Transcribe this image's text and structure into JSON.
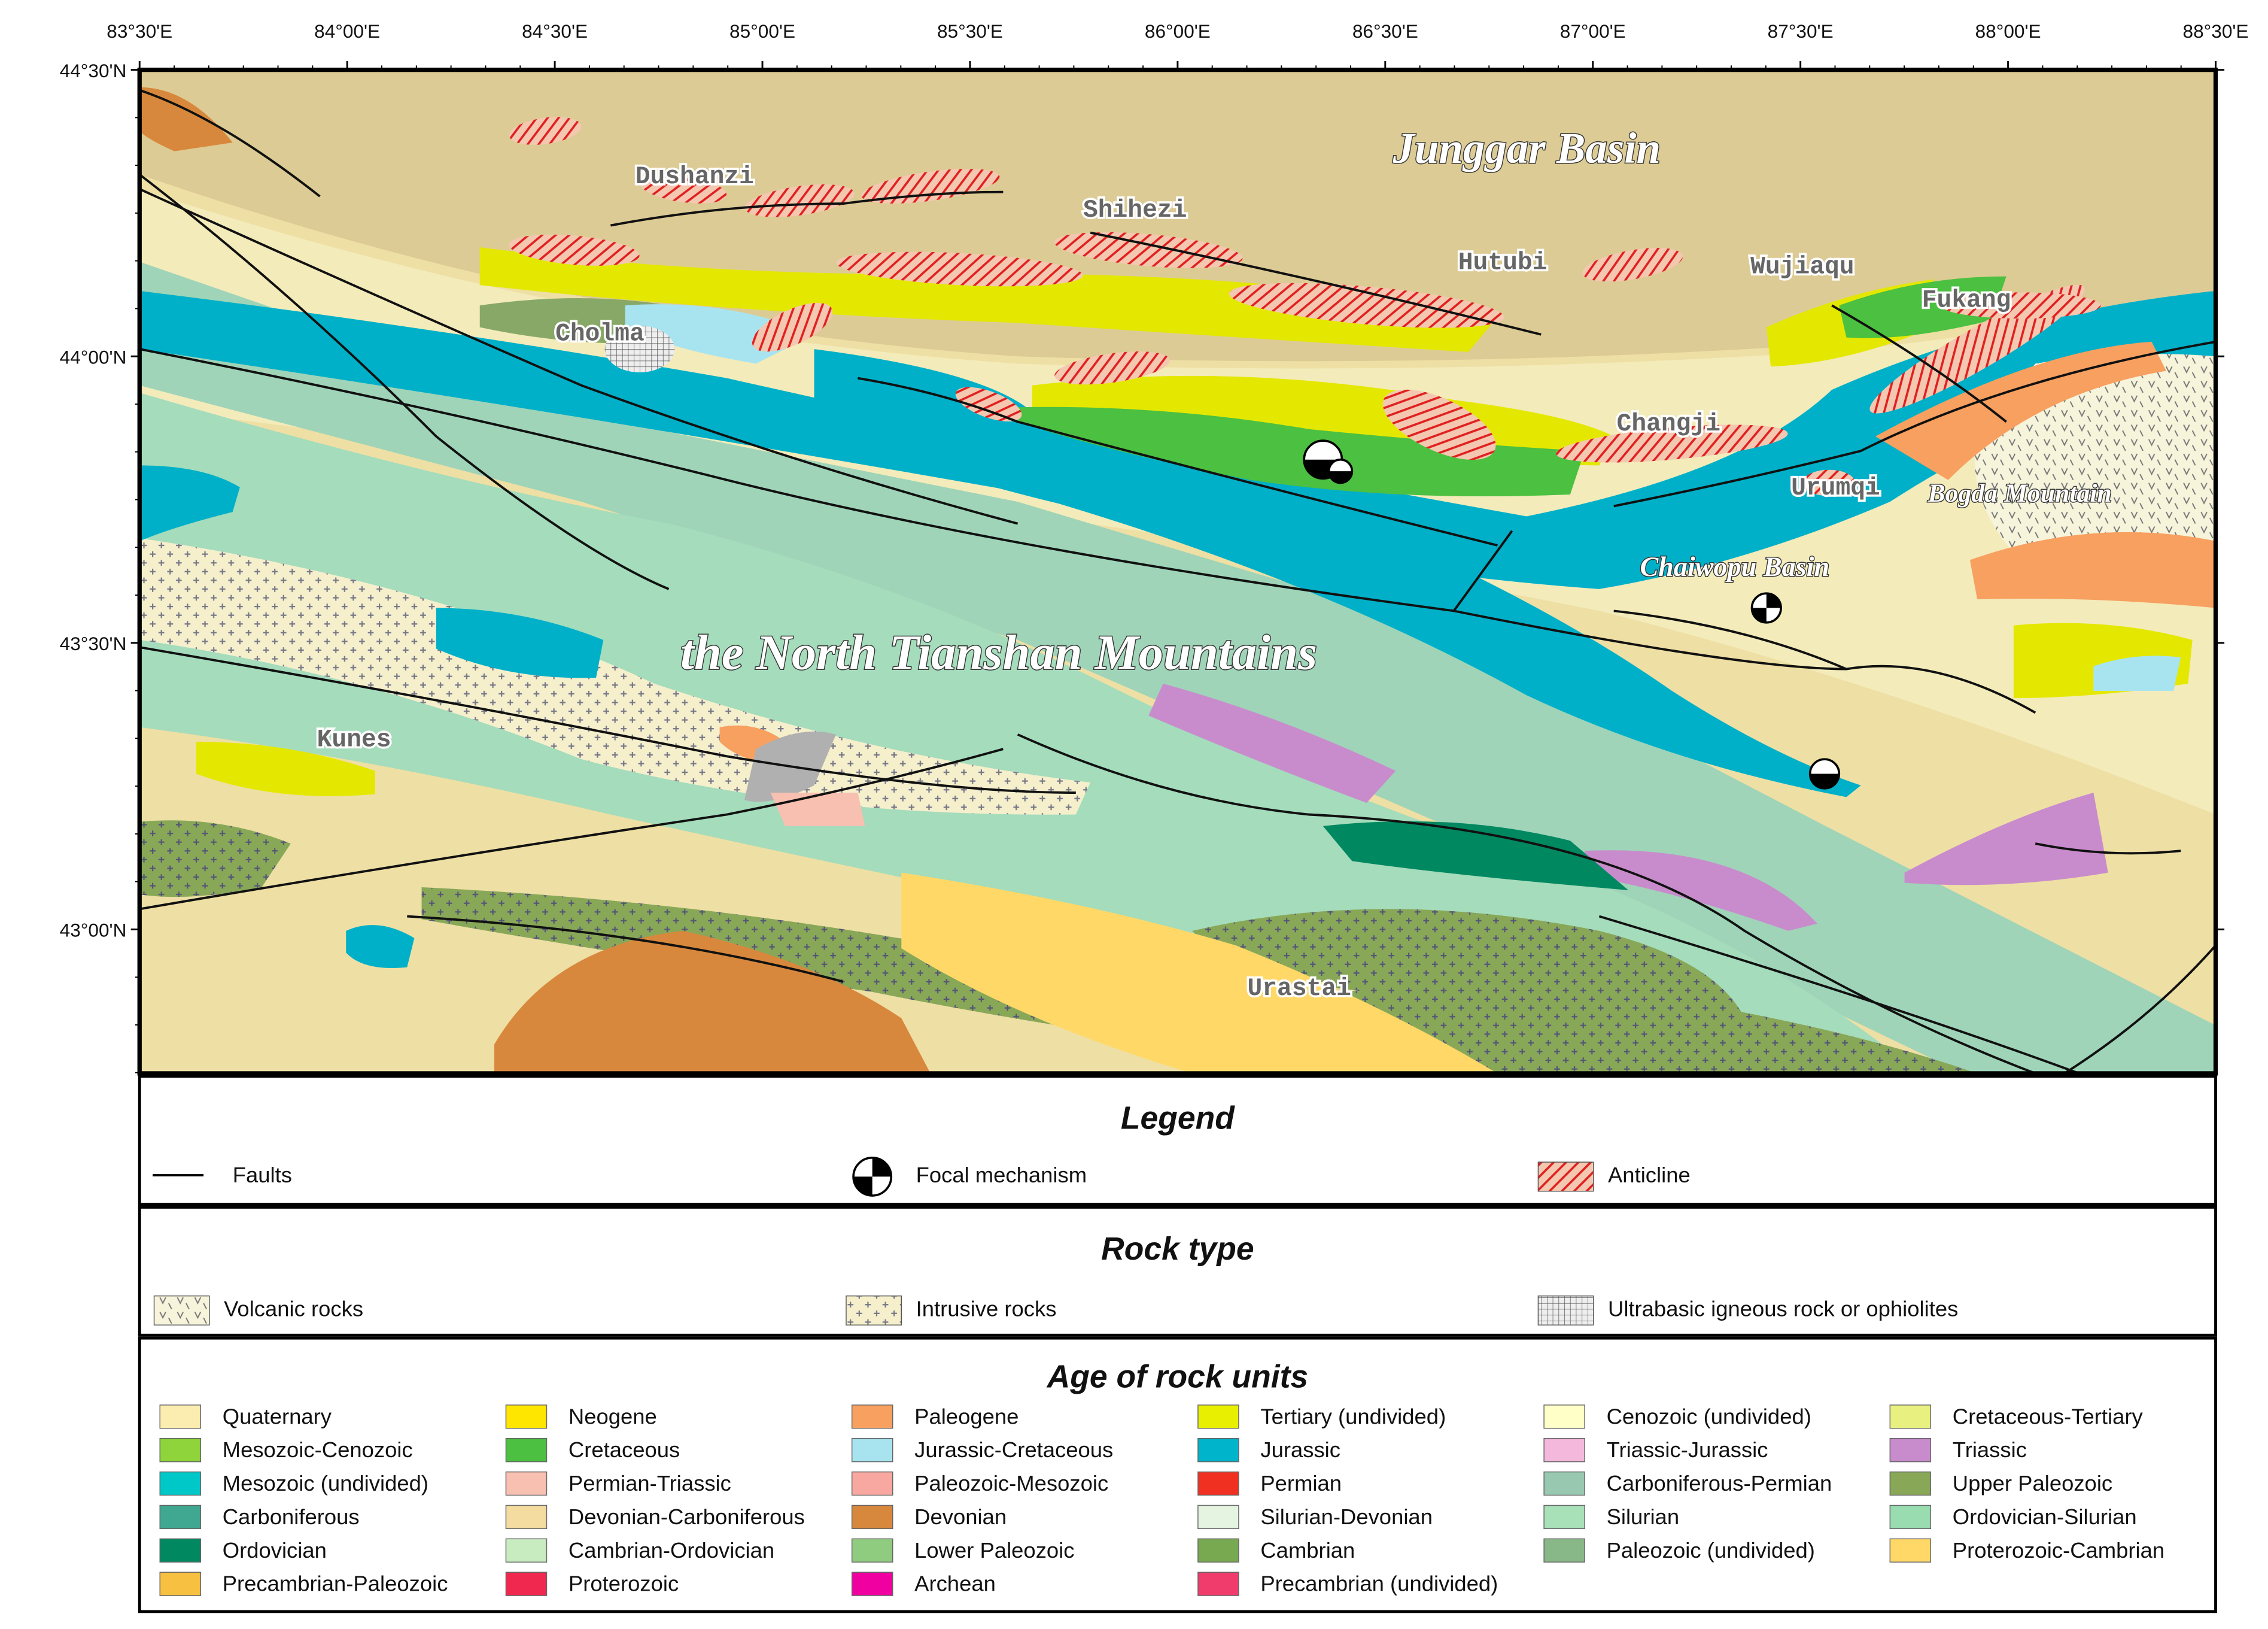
{
  "map": {
    "x_labels": [
      "83°30'E",
      "84°00'E",
      "84°30'E",
      "85°00'E",
      "85°30'E",
      "86°00'E",
      "86°30'E",
      "87°00'E",
      "87°30'E",
      "88°00'E",
      "88°30'E"
    ],
    "y_labels": [
      "44°30'N",
      "44°00'N",
      "43°30'N",
      "43°00'N"
    ],
    "places": [
      "Dushanzi",
      "Shihezi",
      "Hutubi",
      "Wujiaqu",
      "Fukang",
      "Cholma",
      "Changji",
      "Urumqi",
      "Kunes",
      "Urastai"
    ],
    "regions": [
      "Junggar Basin",
      "the North Tianshan Mountains",
      "Bogda Mountain",
      "Chaiwopu Basin"
    ]
  },
  "legend": {
    "title": "Legend",
    "items": [
      "Faults",
      "Focal mechanism",
      "Anticline"
    ]
  },
  "rock_type": {
    "title": "Rock type",
    "items": [
      "Volcanic rocks",
      "Intrusive rocks",
      "Ultrabasic igneous rock or ophiolites"
    ]
  },
  "age_units": {
    "title": "Age of rock units",
    "items": [
      {
        "label": "Quaternary",
        "color": "#fbecb0"
      },
      {
        "label": "Neogene",
        "color": "#ffe600"
      },
      {
        "label": "Paleogene",
        "color": "#f8a060"
      },
      {
        "label": "Tertiary (undivided)",
        "color": "#e8ef00"
      },
      {
        "label": "Cenozoic (undivided)",
        "color": "#ffffc8"
      },
      {
        "label": "Cretaceous-Tertiary",
        "color": "#e8f080"
      },
      {
        "label": "Mesozoic-Cenozoic",
        "color": "#8ed43a"
      },
      {
        "label": "Cretaceous",
        "color": "#4cc040"
      },
      {
        "label": "Jurassic-Cretaceous",
        "color": "#a8e4f0"
      },
      {
        "label": "Jurassic",
        "color": "#00b4cc"
      },
      {
        "label": "Triassic-Jurassic",
        "color": "#f4b8dc"
      },
      {
        "label": "Triassic",
        "color": "#c88ccc"
      },
      {
        "label": "Mesozoic (undivided)",
        "color": "#00c8c8"
      },
      {
        "label": "Permian-Triassic",
        "color": "#f8c0b0"
      },
      {
        "label": "Paleozoic-Mesozoic",
        "color": "#f8a8a0"
      },
      {
        "label": "Permian",
        "color": "#f03020"
      },
      {
        "label": "Carboniferous-Permian",
        "color": "#98c8b0"
      },
      {
        "label": "Upper Paleozoic",
        "color": "#88a858"
      },
      {
        "label": "Carboniferous",
        "color": "#40a890"
      },
      {
        "label": "Devonian-Carboniferous",
        "color": "#f4dca0"
      },
      {
        "label": "Devonian",
        "color": "#d8883c"
      },
      {
        "label": "Silurian-Devonian",
        "color": "#e4f4e0"
      },
      {
        "label": "Silurian",
        "color": "#a8e0b8"
      },
      {
        "label": "Ordovician-Silurian",
        "color": "#98dcb0"
      },
      {
        "label": "Ordovician",
        "color": "#008860"
      },
      {
        "label": "Cambrian-Ordovician",
        "color": "#c8ecc0"
      },
      {
        "label": "Lower Paleozoic",
        "color": "#90cc80"
      },
      {
        "label": "Cambrian",
        "color": "#78a850"
      },
      {
        "label": "Paleozoic (undivided)",
        "color": "#88b888"
      },
      {
        "label": "Proterozoic-Cambrian",
        "color": "#ffd868"
      },
      {
        "label": "Precambrian-Paleozoic",
        "color": "#f8c040"
      },
      {
        "label": "Proterozoic",
        "color": "#f02850"
      },
      {
        "label": "Archean",
        "color": "#f000a0"
      },
      {
        "label": "Precambrian (undivided)",
        "color": "#f03c6c"
      }
    ]
  }
}
